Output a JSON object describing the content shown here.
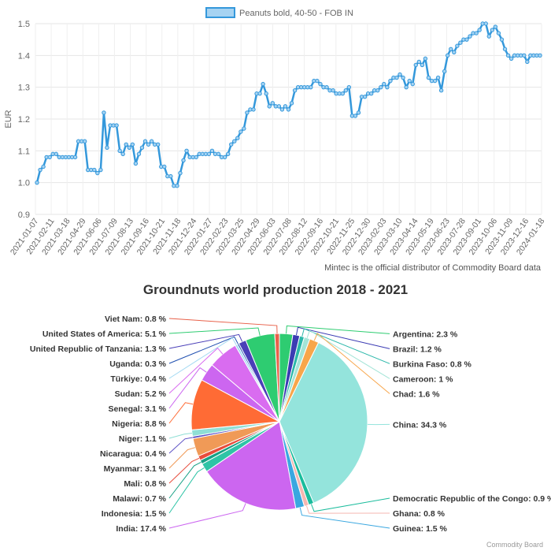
{
  "chart_data": [
    {
      "type": "line",
      "legend": "Peanuts bold, 40-50 - FOB IN",
      "ylabel": "EUR",
      "ylim": [
        0.9,
        1.5
      ],
      "yticks": [
        0.9,
        1.0,
        1.1,
        1.2,
        1.3,
        1.4,
        1.5
      ],
      "xticklabels": [
        "2021-01-07",
        "2021-02-11",
        "2021-03-18",
        "2021-04-29",
        "2021-06-06",
        "2021-07-09",
        "2021-08-13",
        "2021-09-16",
        "2021-10-21",
        "2021-11-18",
        "2021-12-24",
        "2022-01-27",
        "2022-02-23",
        "2022-03-25",
        "2022-04-29",
        "2022-06-03",
        "2022-07-08",
        "2022-08-12",
        "2022-09-16",
        "2022-10-21",
        "2022-11-25",
        "2022-12-30",
        "2023-02-03",
        "2023-03-10",
        "2023-04-14",
        "2023-05-19",
        "2023-06-23",
        "2023-07-28",
        "2023-09-01",
        "2023-10-06",
        "2023-11-09",
        "2023-12-16",
        "2024-01-18"
      ],
      "values": [
        1.0,
        1.04,
        1.05,
        1.08,
        1.08,
        1.09,
        1.09,
        1.08,
        1.08,
        1.08,
        1.08,
        1.08,
        1.08,
        1.13,
        1.13,
        1.13,
        1.04,
        1.04,
        1.04,
        1.03,
        1.04,
        1.22,
        1.11,
        1.18,
        1.18,
        1.18,
        1.1,
        1.09,
        1.12,
        1.11,
        1.12,
        1.06,
        1.09,
        1.11,
        1.13,
        1.12,
        1.13,
        1.12,
        1.12,
        1.05,
        1.05,
        1.02,
        1.02,
        0.99,
        0.99,
        1.03,
        1.07,
        1.1,
        1.08,
        1.08,
        1.08,
        1.09,
        1.09,
        1.09,
        1.09,
        1.1,
        1.09,
        1.09,
        1.08,
        1.08,
        1.09,
        1.12,
        1.13,
        1.14,
        1.16,
        1.17,
        1.22,
        1.23,
        1.23,
        1.28,
        1.28,
        1.31,
        1.28,
        1.24,
        1.25,
        1.24,
        1.24,
        1.23,
        1.24,
        1.23,
        1.25,
        1.29,
        1.3,
        1.3,
        1.3,
        1.3,
        1.3,
        1.32,
        1.32,
        1.31,
        1.3,
        1.3,
        1.29,
        1.29,
        1.28,
        1.28,
        1.28,
        1.29,
        1.3,
        1.21,
        1.21,
        1.22,
        1.27,
        1.27,
        1.28,
        1.28,
        1.29,
        1.29,
        1.3,
        1.31,
        1.3,
        1.32,
        1.33,
        1.33,
        1.34,
        1.33,
        1.3,
        1.32,
        1.31,
        1.37,
        1.38,
        1.37,
        1.39,
        1.33,
        1.32,
        1.32,
        1.33,
        1.29,
        1.35,
        1.4,
        1.42,
        1.41,
        1.43,
        1.44,
        1.45,
        1.45,
        1.46,
        1.47,
        1.47,
        1.48,
        1.5,
        1.5,
        1.46,
        1.48,
        1.49,
        1.47,
        1.45,
        1.42,
        1.4,
        1.39,
        1.4,
        1.4,
        1.4,
        1.4,
        1.38,
        1.4,
        1.4,
        1.4,
        1.4
      ],
      "line_color": "#3498db",
      "fill_color": "#a6d3f2",
      "note": "Mintec is the official distributor of Commodity Board data"
    },
    {
      "type": "pie",
      "title": "Groundnuts world production 2018 - 2021",
      "slices": [
        {
          "label": "Argentina",
          "value": 2.3,
          "color": "#2ecc71"
        },
        {
          "label": "Brazil",
          "value": 1.2,
          "color": "#3b3bb3"
        },
        {
          "label": "Burkina Faso",
          "value": 0.8,
          "color": "#2ab7a9"
        },
        {
          "label": "Cameroon",
          "value": 1.0,
          "color": "#a3e4d7"
        },
        {
          "label": "Chad",
          "value": 1.6,
          "color": "#f8a64b"
        },
        {
          "label": "China",
          "value": 34.3,
          "color": "#94e4dc"
        },
        {
          "label": "Democratic Republic of the Congo",
          "value": 0.9,
          "color": "#1abc9c"
        },
        {
          "label": "Ghana",
          "value": 0.8,
          "color": "#f5b7b1"
        },
        {
          "label": "Guinea",
          "value": 1.5,
          "color": "#3aa7e0"
        },
        {
          "label": "India",
          "value": 17.4,
          "color": "#cc66f0"
        },
        {
          "label": "Indonesia",
          "value": 1.5,
          "color": "#2ec4a6"
        },
        {
          "label": "Malawi",
          "value": 0.7,
          "color": "#16a085"
        },
        {
          "label": "Mali",
          "value": 0.8,
          "color": "#e74c3c"
        },
        {
          "label": "Myanmar",
          "value": 3.1,
          "color": "#f09a57"
        },
        {
          "label": "Nicaragua",
          "value": 0.4,
          "color": "#5b4fc4"
        },
        {
          "label": "Niger",
          "value": 1.1,
          "color": "#8fdfd5"
        },
        {
          "label": "Nigeria",
          "value": 8.8,
          "color": "#ff6b35"
        },
        {
          "label": "Senegal",
          "value": 3.1,
          "color": "#cc66f0"
        },
        {
          "label": "Sudan",
          "value": 5.2,
          "color": "#d96cf0"
        },
        {
          "label": "Türkiye",
          "value": 0.4,
          "color": "#a3d9f2"
        },
        {
          "label": "Uganda",
          "value": 0.3,
          "color": "#1f4fb0"
        },
        {
          "label": "United Republic of Tanzania",
          "value": 1.3,
          "color": "#4a3fb8"
        },
        {
          "label": "United States of America",
          "value": 5.1,
          "color": "#2ecc71"
        },
        {
          "label": "Viet Nam",
          "value": 0.8,
          "color": "#e8614a"
        }
      ]
    }
  ],
  "footer": {
    "credit": "Commodity Board"
  }
}
